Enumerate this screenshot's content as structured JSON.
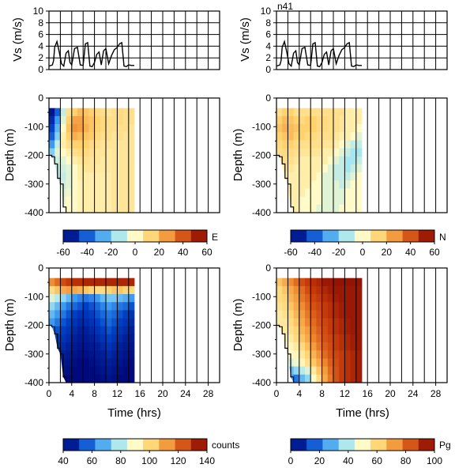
{
  "chart_data": [
    {
      "type": "line",
      "panel": "vs-left",
      "title": "",
      "ylabel": "Vs (m/s)",
      "xlabel": "",
      "xlim": [
        0,
        30
      ],
      "ylim": [
        0,
        10
      ],
      "yticks": [
        "0",
        "2",
        "4",
        "6",
        "8",
        "10"
      ],
      "grid": true,
      "series": [
        {
          "x": [
            0,
            0.6,
            0.8,
            1.0,
            1.4,
            1.8,
            2.2,
            2.6,
            3.0,
            3.4,
            3.7,
            4.0,
            4.5,
            5.0,
            5.5,
            6.0,
            6.4,
            6.8,
            7.2,
            7.6,
            8.0,
            8.4,
            8.8,
            9.2,
            9.6,
            10.0,
            10.5,
            11.0,
            11.5,
            12.0,
            12.4,
            12.8,
            13.2,
            13.6,
            14.0,
            14.5,
            15.0
          ],
          "y": [
            0.6,
            0.8,
            1.5,
            3.8,
            4.8,
            3.0,
            1.0,
            0.6,
            2.8,
            3.2,
            1.2,
            0.8,
            3.6,
            3.8,
            0.8,
            0.7,
            4.4,
            4.6,
            0.6,
            0.5,
            1.2,
            2.6,
            3.0,
            0.8,
            3.2,
            3.6,
            1.0,
            2.4,
            3.4,
            3.8,
            4.4,
            4.6,
            0.6,
            0.5,
            0.8,
            0.7,
            0.7
          ]
        }
      ]
    },
    {
      "type": "line",
      "panel": "vs-right",
      "title": "n41",
      "ylabel": "Vs (m/s)",
      "xlabel": "",
      "xlim": [
        0,
        30
      ],
      "ylim": [
        0,
        10
      ],
      "yticks": [
        "0",
        "2",
        "4",
        "6",
        "8",
        "10"
      ],
      "grid": true,
      "series": [
        {
          "x": [
            0,
            0.6,
            0.8,
            1.0,
            1.4,
            1.8,
            2.2,
            2.6,
            3.0,
            3.4,
            3.7,
            4.0,
            4.5,
            5.0,
            5.5,
            6.0,
            6.4,
            6.8,
            7.2,
            7.6,
            8.0,
            8.4,
            8.8,
            9.2,
            9.6,
            10.0,
            10.5,
            11.0,
            11.5,
            12.0,
            12.4,
            12.8,
            13.2,
            13.6,
            14.0,
            14.5,
            15.0
          ],
          "y": [
            0.6,
            0.8,
            1.5,
            3.8,
            4.8,
            3.0,
            1.0,
            0.6,
            2.8,
            3.2,
            1.2,
            0.8,
            3.6,
            3.8,
            0.8,
            0.7,
            4.4,
            4.6,
            0.6,
            0.5,
            1.2,
            2.6,
            3.0,
            0.8,
            3.2,
            3.6,
            1.0,
            2.4,
            3.4,
            3.8,
            4.4,
            4.6,
            0.6,
            0.5,
            0.8,
            0.7,
            0.7
          ]
        }
      ]
    },
    {
      "type": "heatmap",
      "panel": "e-velocity",
      "title": "",
      "ylabel": "Depth (m)",
      "xlabel": "",
      "xlim": [
        0,
        30
      ],
      "ylim": [
        -400,
        0
      ],
      "yticks": [
        "0",
        "-100",
        "-200",
        "-300",
        "-400"
      ],
      "field": "E",
      "clim": [
        -60,
        60
      ],
      "colormap": "blue-white-red",
      "data_extent": {
        "t_start": 0,
        "t_end": 15,
        "top_depth": -35,
        "bottom_depth": -400
      },
      "bottom_boundary": {
        "t": [
          0,
          0.5,
          1.0,
          1.5,
          2.0,
          2.5,
          3.0
        ],
        "depth": [
          -200,
          -205,
          -230,
          -280,
          -300,
          -380,
          -400
        ]
      },
      "values": [
        [
          -55,
          -40,
          -10,
          10,
          15,
          20,
          18,
          15,
          12,
          10,
          8,
          10,
          12,
          10,
          10
        ],
        [
          -50,
          -30,
          -5,
          15,
          25,
          25,
          20,
          18,
          15,
          12,
          10,
          10,
          12,
          10,
          10
        ],
        [
          -45,
          -25,
          0,
          18,
          28,
          26,
          22,
          18,
          14,
          12,
          10,
          10,
          10,
          10,
          8
        ],
        [
          -40,
          -20,
          5,
          15,
          22,
          20,
          18,
          16,
          12,
          10,
          10,
          8,
          10,
          8,
          8
        ],
        [
          -30,
          -10,
          5,
          10,
          15,
          15,
          15,
          12,
          10,
          8,
          8,
          8,
          8,
          8,
          8
        ],
        [
          -20,
          -5,
          0,
          5,
          10,
          12,
          12,
          10,
          8,
          8,
          6,
          8,
          8,
          8,
          8
        ],
        [
          -10,
          -8,
          -5,
          0,
          5,
          8,
          10,
          8,
          8,
          6,
          6,
          8,
          8,
          8,
          8
        ],
        [
          -5,
          -10,
          -8,
          -5,
          0,
          5,
          8,
          8,
          6,
          6,
          6,
          8,
          8,
          8,
          8
        ],
        [
          0,
          -12,
          -10,
          -5,
          0,
          5,
          5,
          5,
          5,
          5,
          5,
          8,
          8,
          8,
          8
        ],
        [
          0,
          -10,
          -8,
          -5,
          0,
          3,
          5,
          5,
          5,
          5,
          5,
          8,
          8,
          8,
          8
        ],
        [
          0,
          -5,
          -5,
          -3,
          0,
          3,
          5,
          5,
          5,
          5,
          5,
          8,
          8,
          8,
          8
        ],
        [
          0,
          0,
          -3,
          0,
          0,
          3,
          5,
          5,
          5,
          5,
          5,
          8,
          8,
          8,
          8
        ],
        [
          0,
          0,
          0,
          0,
          0,
          3,
          5,
          5,
          5,
          5,
          5,
          8,
          8,
          8,
          8
        ]
      ]
    },
    {
      "type": "heatmap",
      "panel": "n-velocity",
      "title": "",
      "ylabel": "Depth (m)",
      "xlabel": "",
      "xlim": [
        0,
        30
      ],
      "ylim": [
        -400,
        0
      ],
      "yticks": [
        "0",
        "-100",
        "-200",
        "-300",
        "-400"
      ],
      "field": "N",
      "clim": [
        -60,
        60
      ],
      "colormap": "blue-white-red",
      "data_extent": {
        "t_start": 0,
        "t_end": 15,
        "top_depth": -35,
        "bottom_depth": -400
      },
      "bottom_boundary": {
        "t": [
          0,
          0.5,
          1.0,
          1.5,
          2.0,
          2.5,
          3.0
        ],
        "depth": [
          -200,
          -205,
          -230,
          -280,
          -300,
          -380,
          -400
        ]
      },
      "values": [
        [
          10,
          15,
          15,
          10,
          10,
          10,
          10,
          10,
          10,
          10,
          10,
          10,
          5,
          5,
          5
        ],
        [
          15,
          20,
          18,
          15,
          12,
          15,
          15,
          12,
          12,
          10,
          10,
          8,
          5,
          5,
          5
        ],
        [
          18,
          22,
          20,
          18,
          15,
          15,
          15,
          12,
          12,
          10,
          10,
          8,
          5,
          5,
          0
        ],
        [
          15,
          18,
          20,
          15,
          15,
          12,
          12,
          10,
          10,
          10,
          8,
          5,
          5,
          0,
          -5
        ],
        [
          12,
          15,
          15,
          12,
          10,
          10,
          10,
          10,
          8,
          8,
          5,
          0,
          -5,
          -10,
          -10
        ],
        [
          10,
          12,
          12,
          10,
          8,
          8,
          8,
          8,
          5,
          5,
          0,
          -5,
          -10,
          -15,
          -15
        ],
        [
          8,
          10,
          10,
          8,
          5,
          5,
          5,
          5,
          5,
          0,
          -5,
          -10,
          -15,
          -15,
          -10
        ],
        [
          5,
          8,
          8,
          5,
          5,
          5,
          5,
          5,
          0,
          -5,
          -10,
          -10,
          -15,
          -10,
          -5
        ],
        [
          5,
          5,
          5,
          5,
          5,
          5,
          5,
          0,
          -5,
          -5,
          -10,
          -10,
          -10,
          -5,
          0
        ],
        [
          5,
          5,
          5,
          5,
          5,
          5,
          0,
          0,
          -5,
          -5,
          -5,
          -10,
          -5,
          0,
          0
        ],
        [
          5,
          5,
          5,
          5,
          5,
          0,
          0,
          0,
          -5,
          -5,
          -5,
          -5,
          0,
          0,
          0
        ],
        [
          5,
          5,
          5,
          5,
          0,
          0,
          0,
          0,
          -5,
          -5,
          -5,
          -5,
          0,
          0,
          0
        ],
        [
          5,
          5,
          5,
          5,
          0,
          0,
          0,
          -5,
          -5,
          -5,
          -5,
          0,
          0,
          0,
          0
        ]
      ]
    },
    {
      "type": "heatmap",
      "panel": "counts",
      "title": "",
      "ylabel": "Depth (m)",
      "xlabel": "Time (hrs)",
      "xlim": [
        0,
        30
      ],
      "ylim": [
        -400,
        0
      ],
      "yticks": [
        "0",
        "-100",
        "-200",
        "-300",
        "-400"
      ],
      "xticks": [
        "0",
        "4",
        "8",
        "12",
        "16",
        "20",
        "24",
        "28"
      ],
      "field": "counts",
      "clim": [
        40,
        140
      ],
      "colormap": "blue-white-red",
      "data_extent": {
        "t_start": 0,
        "t_end": 15,
        "top_depth": -35,
        "bottom_depth": -400
      },
      "bottom_boundary": {
        "t": [
          0,
          0.5,
          1.0,
          1.5,
          2.0,
          2.5,
          3.0
        ],
        "depth": [
          -200,
          -205,
          -230,
          -280,
          -300,
          -380,
          -400
        ]
      },
      "values": [
        [
          115,
          120,
          125,
          128,
          130,
          130,
          132,
          132,
          132,
          132,
          132,
          132,
          132,
          132,
          132
        ],
        [
          100,
          105,
          110,
          112,
          110,
          108,
          105,
          102,
          100,
          100,
          102,
          105,
          105,
          102,
          100
        ],
        [
          85,
          80,
          75,
          70,
          65,
          62,
          60,
          62,
          65,
          70,
          72,
          72,
          70,
          68,
          65
        ],
        [
          75,
          70,
          65,
          60,
          58,
          55,
          52,
          55,
          58,
          62,
          65,
          62,
          60,
          58,
          55
        ],
        [
          70,
          65,
          60,
          55,
          52,
          50,
          50,
          52,
          55,
          58,
          60,
          58,
          55,
          52,
          50
        ],
        [
          65,
          60,
          55,
          52,
          50,
          48,
          48,
          50,
          52,
          55,
          58,
          55,
          52,
          50,
          48
        ],
        [
          60,
          55,
          52,
          50,
          48,
          46,
          46,
          48,
          50,
          52,
          55,
          52,
          50,
          48,
          46
        ],
        [
          55,
          52,
          50,
          48,
          46,
          45,
          45,
          46,
          48,
          50,
          52,
          50,
          48,
          46,
          45
        ],
        [
          52,
          50,
          48,
          46,
          45,
          44,
          44,
          45,
          46,
          48,
          50,
          48,
          46,
          45,
          44
        ],
        [
          50,
          48,
          46,
          45,
          44,
          43,
          43,
          44,
          45,
          46,
          48,
          46,
          45,
          44,
          43
        ],
        [
          48,
          46,
          45,
          44,
          43,
          42,
          42,
          43,
          44,
          45,
          46,
          45,
          44,
          43,
          42
        ],
        [
          46,
          45,
          44,
          43,
          42,
          42,
          42,
          42,
          43,
          44,
          45,
          44,
          43,
          42,
          42
        ],
        [
          45,
          44,
          43,
          42,
          42,
          42,
          42,
          42,
          42,
          43,
          44,
          43,
          42,
          42,
          42
        ]
      ]
    },
    {
      "type": "heatmap",
      "panel": "pg",
      "title": "",
      "ylabel": "Depth (m)",
      "xlabel": "Time (hrs)",
      "xlim": [
        0,
        30
      ],
      "ylim": [
        -400,
        0
      ],
      "yticks": [
        "0",
        "-100",
        "-200",
        "-300",
        "-400"
      ],
      "xticks": [
        "0",
        "4",
        "8",
        "12",
        "16",
        "20",
        "24",
        "28"
      ],
      "field": "Pg",
      "clim": [
        0,
        100
      ],
      "colormap": "blue-white-red",
      "data_extent": {
        "t_start": 0,
        "t_end": 15,
        "top_depth": -35,
        "bottom_depth": -400
      },
      "bottom_boundary": {
        "t": [
          0,
          0.5,
          1.0,
          1.5,
          2.0,
          2.5,
          3.0
        ],
        "depth": [
          -200,
          -205,
          -230,
          -280,
          -300,
          -380,
          -400
        ]
      },
      "values": [
        [
          65,
          70,
          75,
          80,
          85,
          88,
          90,
          92,
          95,
          95,
          96,
          96,
          96,
          96,
          96
        ],
        [
          60,
          65,
          70,
          75,
          80,
          85,
          88,
          90,
          92,
          94,
          95,
          95,
          95,
          95,
          95
        ],
        [
          60,
          62,
          68,
          72,
          78,
          82,
          86,
          88,
          90,
          92,
          94,
          95,
          95,
          95,
          95
        ],
        [
          58,
          60,
          65,
          70,
          75,
          80,
          84,
          86,
          88,
          90,
          92,
          94,
          95,
          95,
          95
        ],
        [
          55,
          58,
          62,
          68,
          72,
          78,
          82,
          85,
          88,
          90,
          92,
          94,
          95,
          95,
          95
        ],
        [
          55,
          56,
          60,
          65,
          70,
          76,
          80,
          84,
          86,
          88,
          90,
          92,
          94,
          95,
          95
        ],
        [
          52,
          55,
          58,
          62,
          68,
          72,
          78,
          82,
          85,
          88,
          90,
          92,
          94,
          95,
          95
        ],
        [
          50,
          52,
          55,
          60,
          65,
          70,
          76,
          80,
          84,
          86,
          88,
          90,
          92,
          94,
          95
        ],
        [
          50,
          50,
          52,
          56,
          60,
          66,
          72,
          78,
          82,
          85,
          88,
          90,
          92,
          94,
          95
        ],
        [
          50,
          48,
          50,
          52,
          56,
          62,
          68,
          74,
          80,
          84,
          86,
          88,
          90,
          92,
          94
        ],
        [
          50,
          45,
          45,
          48,
          52,
          58,
          64,
          70,
          76,
          82,
          85,
          88,
          90,
          92,
          94
        ],
        [
          50,
          40,
          30,
          35,
          40,
          45,
          55,
          65,
          72,
          80,
          84,
          88,
          90,
          92,
          94
        ],
        [
          50,
          45,
          25,
          20,
          30,
          35,
          50,
          60,
          70,
          78,
          84,
          88,
          90,
          92,
          94
        ]
      ]
    }
  ],
  "colorbars": [
    {
      "label": "E",
      "ticks": [
        "-60",
        "-40",
        "-20",
        "0",
        "20",
        "40",
        "60"
      ]
    },
    {
      "label": "N",
      "ticks": [
        "-60",
        "-40",
        "-20",
        "0",
        "20",
        "40",
        "60"
      ]
    },
    {
      "label": "counts",
      "ticks": [
        "40",
        "60",
        "80",
        "100",
        "120",
        "140"
      ]
    },
    {
      "label": "Pg",
      "ticks": [
        "0",
        "20",
        "40",
        "60",
        "80",
        "100"
      ]
    }
  ],
  "colormap_stops": [
    "#00006e",
    "#0041c8",
    "#3c9bf0",
    "#a5e6f0",
    "#fffac8",
    "#ffd26e",
    "#f08c32",
    "#c83c0a",
    "#7d0000"
  ]
}
